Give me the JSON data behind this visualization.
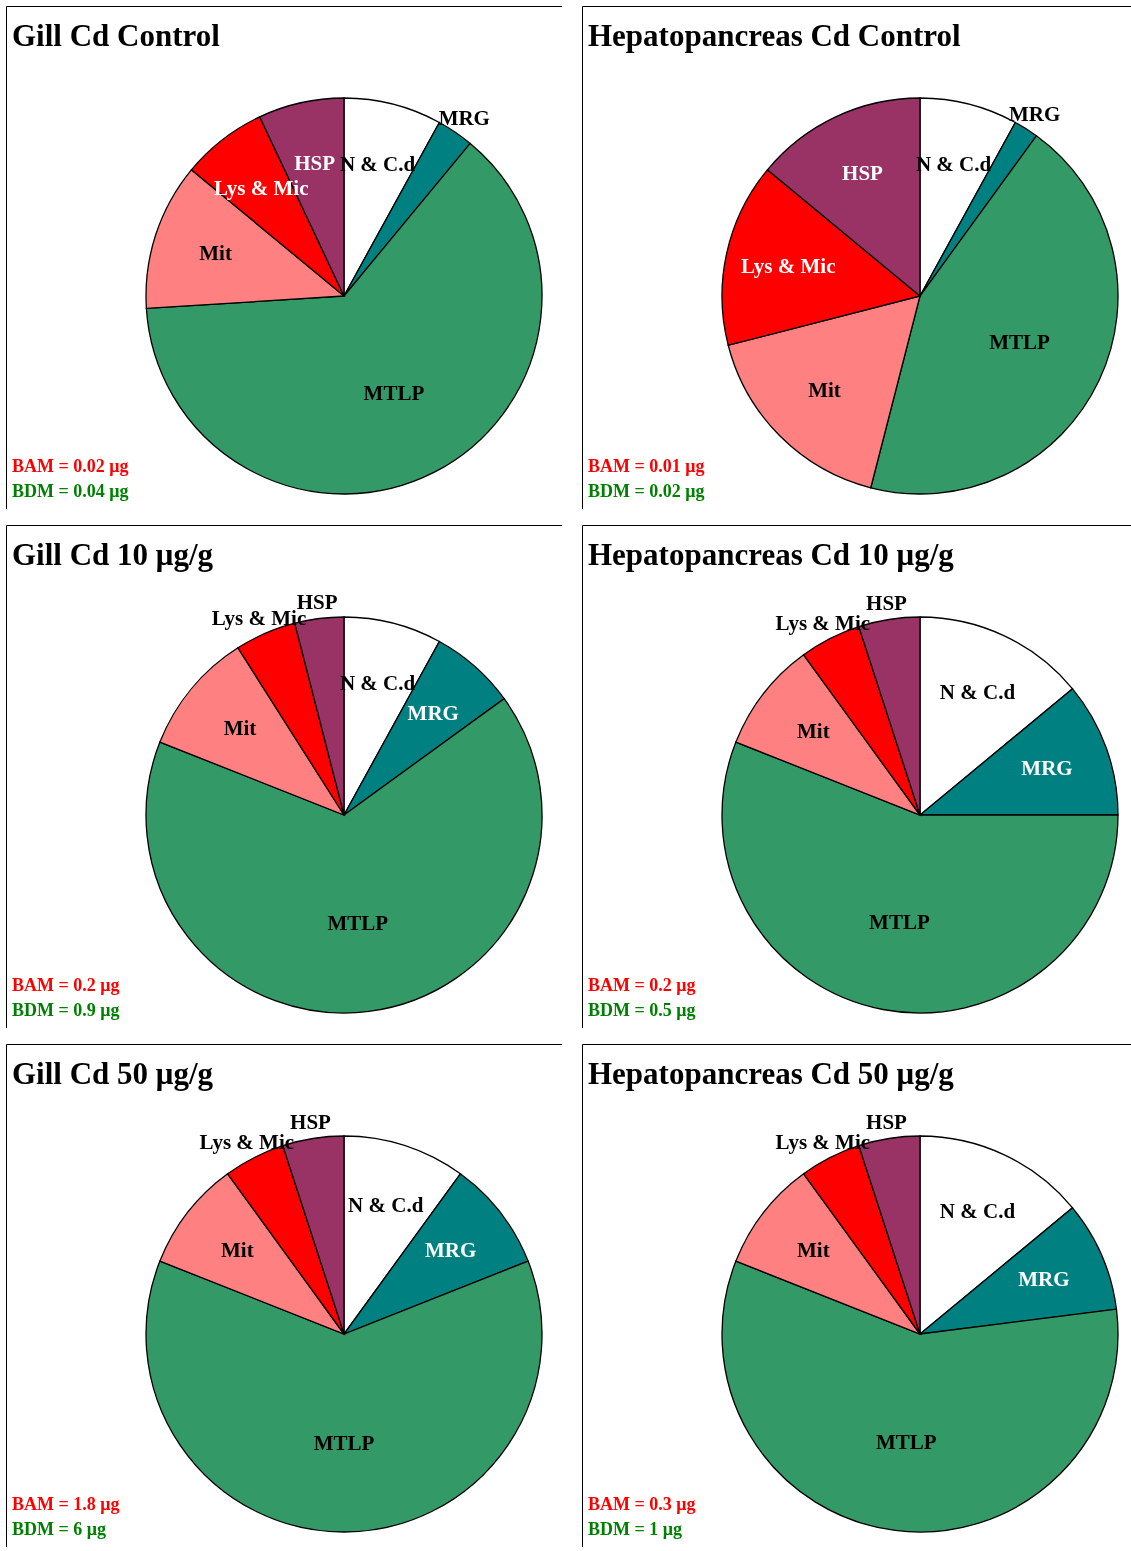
{
  "chart_data": [
    {
      "type": "pie",
      "title": "Gill Cd Control",
      "categories": [
        "N & C.d",
        "MRG",
        "MTLP",
        "Mit",
        "Lys & Mic",
        "HSP"
      ],
      "values": [
        8,
        3,
        63,
        12,
        7,
        7
      ],
      "colors": [
        "#ffffff",
        "#008080",
        "#339966",
        "#ff8080",
        "#ff0000",
        "#993366"
      ],
      "annotations": [
        "BAM = 0.02 μg",
        "BDM = 0.04 μg"
      ]
    },
    {
      "type": "pie",
      "title": "Hepatopancreas Cd Control",
      "categories": [
        "N & C.d",
        "MRG",
        "MTLP",
        "Mit",
        "Lys & Mic",
        "HSP"
      ],
      "values": [
        8,
        2,
        44,
        17,
        15,
        14
      ],
      "colors": [
        "#ffffff",
        "#008080",
        "#339966",
        "#ff8080",
        "#ff0000",
        "#993366"
      ],
      "annotations": [
        "BAM = 0.01 μg",
        "BDM = 0.02 μg"
      ]
    },
    {
      "type": "pie",
      "title": "Gill Cd 10 μg/g",
      "categories": [
        "N & C.d",
        "MRG",
        "MTLP",
        "Mit",
        "Lys & Mic",
        "HSP"
      ],
      "values": [
        8,
        7,
        66,
        10,
        5,
        4
      ],
      "colors": [
        "#ffffff",
        "#008080",
        "#339966",
        "#ff8080",
        "#ff0000",
        "#993366"
      ],
      "annotations": [
        "BAM = 0.2 μg",
        "BDM = 0.9 μg"
      ]
    },
    {
      "type": "pie",
      "title": "Hepatopancreas Cd 10 μg/g",
      "categories": [
        "N & C.d",
        "MRG",
        "MTLP",
        "Mit",
        "Lys & Mic",
        "HSP"
      ],
      "values": [
        14,
        11,
        56,
        9,
        5,
        5
      ],
      "colors": [
        "#ffffff",
        "#008080",
        "#339966",
        "#ff8080",
        "#ff0000",
        "#993366"
      ],
      "annotations": [
        "BAM = 0.2 μg",
        "BDM = 0.5 μg"
      ]
    },
    {
      "type": "pie",
      "title": "Gill Cd 50 μg/g",
      "categories": [
        "N & C.d",
        "MRG",
        "MTLP",
        "Mit",
        "Lys & Mic",
        "HSP"
      ],
      "values": [
        10,
        9,
        62,
        9,
        5,
        5
      ],
      "colors": [
        "#ffffff",
        "#008080",
        "#339966",
        "#ff8080",
        "#ff0000",
        "#993366"
      ],
      "annotations": [
        "BAM = 1.8 μg",
        "BDM = 6 μg"
      ]
    },
    {
      "type": "pie",
      "title": "Hepatopancreas Cd 50 μg/g",
      "categories": [
        "N & C.d",
        "MRG",
        "MTLP",
        "Mit",
        "Lys & Mic",
        "HSP"
      ],
      "values": [
        14,
        9,
        58,
        9,
        5,
        5
      ],
      "colors": [
        "#ffffff",
        "#008080",
        "#339966",
        "#ff8080",
        "#ff0000",
        "#993366"
      ],
      "annotations": [
        "BAM = 0.3 μg",
        "BDM = 1 μg"
      ]
    }
  ]
}
